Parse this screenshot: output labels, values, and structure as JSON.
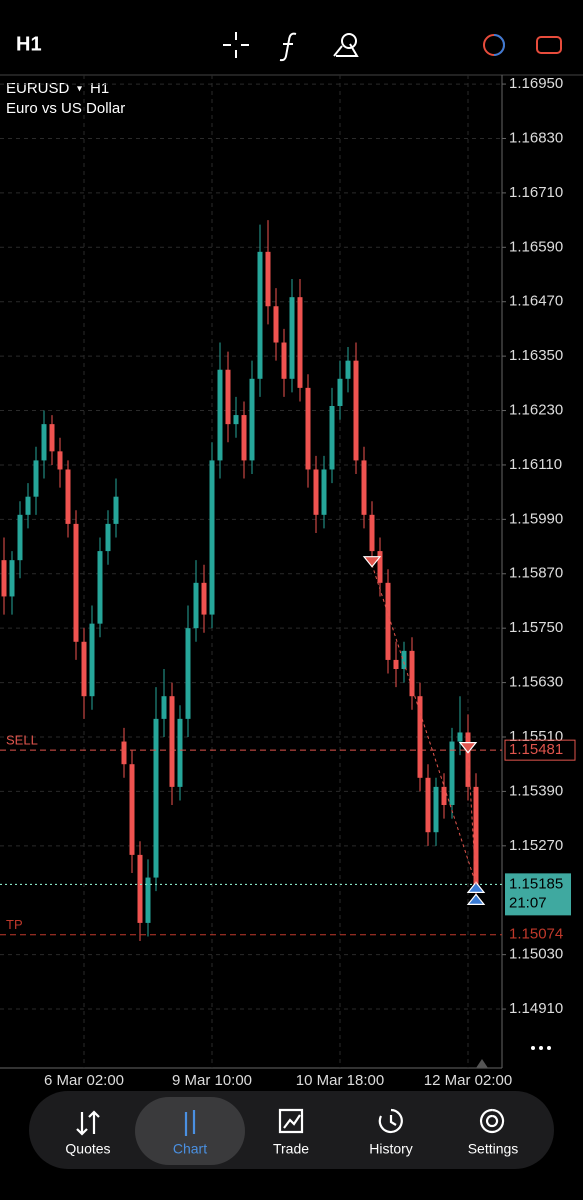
{
  "header": {
    "timeframe": "H1"
  },
  "chart_data": {
    "type": "candlestick",
    "symbol": "EURUSD",
    "timeframe": "H1",
    "description": "Euro vs US Dollar",
    "categories": [
      null,
      null,
      null,
      null,
      null,
      null,
      null,
      null,
      null,
      null,
      "6 Mar 02:00",
      null,
      null,
      null,
      null,
      null,
      null,
      null,
      null,
      null,
      null,
      null,
      null,
      null,
      null,
      null,
      "9 Mar 10:00",
      null,
      null,
      null,
      null,
      null,
      null,
      null,
      null,
      null,
      null,
      null,
      null,
      null,
      null,
      null,
      "10 Mar 18:00",
      null,
      null,
      null,
      null,
      null,
      null,
      null,
      null,
      null,
      null,
      null,
      null,
      null,
      null,
      null,
      "12 Mar 02:00",
      null
    ],
    "open": [
      1.159,
      1.1582,
      1.159,
      1.16,
      1.1604,
      1.1612,
      1.162,
      1.1614,
      1.161,
      1.1598,
      1.1572,
      1.156,
      1.1576,
      1.1592,
      1.1598,
      1.155,
      1.1545,
      1.1525,
      1.151,
      1.152,
      1.1555,
      1.156,
      1.154,
      1.1555,
      1.1575,
      1.1585,
      1.1578,
      1.1612,
      1.1632,
      1.162,
      1.1622,
      1.1612,
      1.163,
      1.1658,
      1.1646,
      1.1638,
      1.163,
      1.1648,
      1.1628,
      1.161,
      1.16,
      1.161,
      1.1624,
      1.163,
      1.1634,
      1.1612,
      1.16,
      1.1592,
      1.1585,
      1.1568,
      1.1566,
      1.157,
      1.156,
      1.1542,
      1.153,
      1.154,
      1.1536,
      1.155,
      1.1552,
      1.154
    ],
    "high": [
      1.1595,
      1.1592,
      1.1603,
      1.1607,
      1.1615,
      1.1623,
      1.1622,
      1.1617,
      1.1612,
      1.1601,
      1.1575,
      1.158,
      1.1595,
      1.1601,
      1.1608,
      1.1553,
      1.1548,
      1.1528,
      1.1524,
      1.1562,
      1.1566,
      1.1563,
      1.1558,
      1.158,
      1.159,
      1.1589,
      1.1616,
      1.1638,
      1.1636,
      1.1626,
      1.1625,
      1.1634,
      1.1664,
      1.1665,
      1.165,
      1.1641,
      1.1652,
      1.1652,
      1.1631,
      1.1613,
      1.1613,
      1.1628,
      1.1634,
      1.1637,
      1.1638,
      1.1615,
      1.1603,
      1.1595,
      1.1588,
      1.1572,
      1.1572,
      1.1573,
      1.1563,
      1.1545,
      1.1542,
      1.1543,
      1.1553,
      1.156,
      1.1556,
      1.1543
    ],
    "low": [
      1.1578,
      1.1578,
      1.1586,
      1.1597,
      1.16,
      1.1608,
      1.1611,
      1.1606,
      1.1595,
      1.1568,
      1.1555,
      1.1557,
      1.1573,
      1.1589,
      1.1595,
      1.1542,
      1.1521,
      1.1506,
      1.1507,
      1.1517,
      1.1551,
      1.1536,
      1.1537,
      1.1551,
      1.1572,
      1.1574,
      1.1575,
      1.1608,
      1.1616,
      1.1617,
      1.1608,
      1.1609,
      1.1626,
      1.1642,
      1.1634,
      1.1626,
      1.1627,
      1.1625,
      1.1606,
      1.1596,
      1.1597,
      1.1607,
      1.1621,
      1.1627,
      1.1609,
      1.1597,
      1.1589,
      1.1582,
      1.1565,
      1.1562,
      1.1563,
      1.1557,
      1.1539,
      1.1527,
      1.1527,
      1.1533,
      1.1533,
      1.1547,
      1.1537,
      1.1516
    ],
    "close": [
      1.1582,
      1.159,
      1.16,
      1.1604,
      1.1612,
      1.162,
      1.1614,
      1.161,
      1.1598,
      1.1572,
      1.156,
      1.1576,
      1.1592,
      1.1598,
      1.1604,
      1.1545,
      1.1525,
      1.151,
      1.152,
      1.1555,
      1.156,
      1.154,
      1.1555,
      1.1575,
      1.1585,
      1.1578,
      1.1612,
      1.1632,
      1.162,
      1.1622,
      1.1612,
      1.163,
      1.1658,
      1.1646,
      1.1638,
      1.163,
      1.1648,
      1.1628,
      1.161,
      1.16,
      1.161,
      1.1624,
      1.163,
      1.1634,
      1.1612,
      1.16,
      1.1592,
      1.1585,
      1.1568,
      1.1566,
      1.157,
      1.156,
      1.1542,
      1.153,
      1.154,
      1.1536,
      1.155,
      1.1552,
      1.154,
      1.15185
    ],
    "up_color": "#26a69a",
    "down_color": "#ef5350",
    "ylim": [
      1.1478,
      1.1697
    ],
    "yticks": [
      {
        "value": 1.1695,
        "label": "1.16950"
      },
      {
        "value": 1.1683,
        "label": "1.16830"
      },
      {
        "value": 1.1671,
        "label": "1.16710"
      },
      {
        "value": 1.1659,
        "label": "1.16590"
      },
      {
        "value": 1.1647,
        "label": "1.16470"
      },
      {
        "value": 1.1635,
        "label": "1.16350"
      },
      {
        "value": 1.1623,
        "label": "1.16230"
      },
      {
        "value": 1.1611,
        "label": "1.16110"
      },
      {
        "value": 1.1599,
        "label": "1.15990"
      },
      {
        "value": 1.1587,
        "label": "1.15870"
      },
      {
        "value": 1.1575,
        "label": "1.15750"
      },
      {
        "value": 1.1563,
        "label": "1.15630"
      },
      {
        "value": 1.1551,
        "label": "1.15510"
      },
      {
        "value": 1.1539,
        "label": "1.15390"
      },
      {
        "value": 1.1527,
        "label": "1.15270"
      },
      {
        "value": 1.1503,
        "label": "1.15030"
      },
      {
        "value": 1.1491,
        "label": "1.14910"
      }
    ],
    "grid": true,
    "levels": [
      {
        "label": "SELL",
        "value": 1.15481,
        "value_label": "1.15481",
        "color": "#e0554d"
      },
      {
        "label": "TP",
        "value": 1.15074,
        "value_label": "1.15074",
        "color": "#c0392b"
      }
    ],
    "current": {
      "value": 1.15185,
      "value_label": "1.15185",
      "countdown": "21:07",
      "color": "#3fa9a0"
    },
    "trades": [
      {
        "entry_index": 46,
        "entry": 1.1589,
        "exit_index": 59,
        "exit": 1.15185
      },
      {
        "entry_index": 58,
        "entry": 1.1548,
        "exit_index": 59,
        "exit": 1.15185
      }
    ]
  },
  "nav": {
    "items": [
      "Quotes",
      "Chart",
      "Trade",
      "History",
      "Settings"
    ],
    "active": 1
  }
}
